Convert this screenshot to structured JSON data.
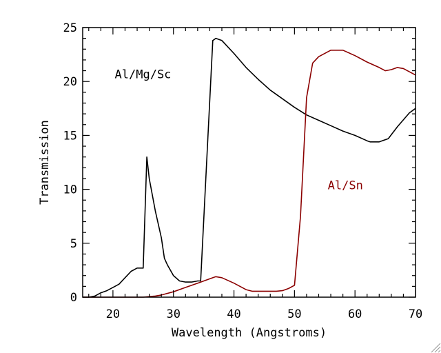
{
  "chart_data": {
    "type": "line",
    "title": "",
    "xlabel": "Wavelength (Angstroms)",
    "ylabel": "Transmission",
    "xlim": [
      15,
      70
    ],
    "ylim": [
      0,
      25
    ],
    "xticks": [
      20,
      30,
      40,
      50,
      60,
      70
    ],
    "yticks": [
      0,
      5,
      10,
      15,
      20,
      25
    ],
    "grid": false,
    "series": [
      {
        "name": "Al/Mg/Sc",
        "color": "#000000",
        "points": [
          [
            15,
            0
          ],
          [
            16,
            0
          ],
          [
            17,
            0.1
          ],
          [
            18,
            0.4
          ],
          [
            19,
            0.6
          ],
          [
            20,
            0.9
          ],
          [
            21,
            1.2
          ],
          [
            22,
            1.8
          ],
          [
            23,
            2.4
          ],
          [
            24,
            2.7
          ],
          [
            25,
            2.7
          ],
          [
            25.6,
            13.0
          ],
          [
            26,
            11.0
          ],
          [
            27,
            8.0
          ],
          [
            28,
            5.5
          ],
          [
            28.5,
            3.6
          ],
          [
            29,
            3.0
          ],
          [
            30,
            2.0
          ],
          [
            31,
            1.5
          ],
          [
            32,
            1.4
          ],
          [
            33,
            1.4
          ],
          [
            34,
            1.5
          ],
          [
            34.5,
            1.5
          ],
          [
            36.5,
            23.8
          ],
          [
            37,
            24.0
          ],
          [
            38,
            23.8
          ],
          [
            39,
            23.2
          ],
          [
            40,
            22.6
          ],
          [
            42,
            21.3
          ],
          [
            44,
            20.2
          ],
          [
            46,
            19.2
          ],
          [
            48,
            18.4
          ],
          [
            50,
            17.6
          ],
          [
            52,
            16.9
          ],
          [
            54,
            16.4
          ],
          [
            56,
            15.9
          ],
          [
            58,
            15.4
          ],
          [
            60,
            15.0
          ],
          [
            62,
            14.5
          ],
          [
            62.5,
            14.4
          ],
          [
            64,
            14.4
          ],
          [
            65.5,
            14.7
          ],
          [
            67,
            15.8
          ],
          [
            69,
            17.1
          ],
          [
            70,
            17.5
          ]
        ]
      },
      {
        "name": "Al/Sn",
        "color": "#8b0000",
        "points": [
          [
            15,
            0
          ],
          [
            25,
            0
          ],
          [
            26,
            0.05
          ],
          [
            27,
            0.1
          ],
          [
            28,
            0.2
          ],
          [
            30,
            0.5
          ],
          [
            32,
            0.9
          ],
          [
            34,
            1.3
          ],
          [
            36,
            1.7
          ],
          [
            37,
            1.9
          ],
          [
            38,
            1.8
          ],
          [
            40,
            1.3
          ],
          [
            42,
            0.7
          ],
          [
            43,
            0.55
          ],
          [
            45,
            0.55
          ],
          [
            47,
            0.55
          ],
          [
            48,
            0.6
          ],
          [
            49,
            0.8
          ],
          [
            50,
            1.1
          ],
          [
            51,
            7.5
          ],
          [
            52,
            18.5
          ],
          [
            53,
            21.7
          ],
          [
            54,
            22.3
          ],
          [
            56,
            22.9
          ],
          [
            58,
            22.9
          ],
          [
            60,
            22.4
          ],
          [
            62,
            21.8
          ],
          [
            64,
            21.3
          ],
          [
            65,
            21.0
          ],
          [
            66,
            21.1
          ],
          [
            67,
            21.3
          ],
          [
            68,
            21.2
          ],
          [
            70,
            20.6
          ]
        ]
      }
    ],
    "annotations": [
      {
        "text": "Al/Mg/Sc",
        "x": 20.3,
        "y": 20.3,
        "color": "#000000"
      },
      {
        "text": "Al/Sn",
        "x": 55.5,
        "y": 10.0,
        "color": "#8b0000"
      }
    ]
  }
}
